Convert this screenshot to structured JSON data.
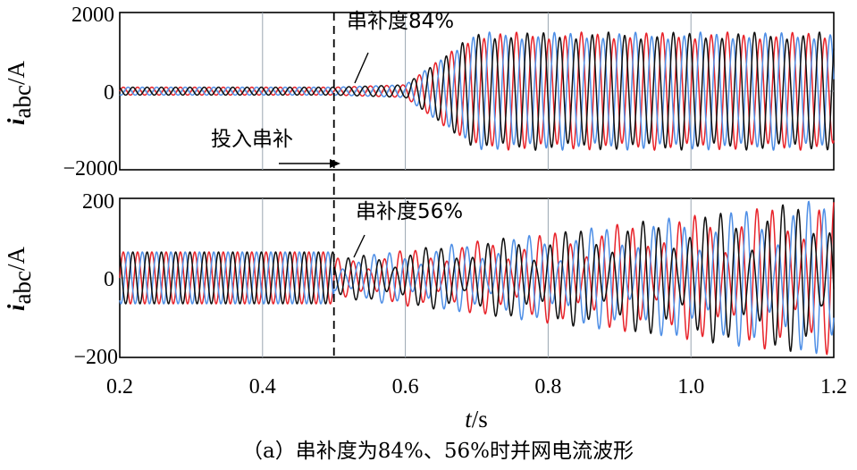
{
  "caption": "（a）串补度为84%、56%时并网电流波形",
  "x_axis": {
    "label_main": "t",
    "label_unit": "/s",
    "ticks": [
      "0.2",
      "0.4",
      "0.6",
      "0.8",
      "1.0",
      "1.2"
    ]
  },
  "colors": {
    "phase_a": "#e8232a",
    "phase_b": "#4f8fe6",
    "phase_c": "#111111",
    "grid": "#9aa6b0"
  },
  "chart_data": [
    {
      "type": "line",
      "ylabel_main": "i",
      "ylabel_sub": "abc",
      "ylabel_unit": "/A",
      "xlim": [
        0.2,
        1.2
      ],
      "ylim": [
        -2000,
        2000
      ],
      "y_ticks": [
        "2000",
        "0",
        "−2000"
      ],
      "grid": true,
      "series_note": "three-phase currents a, b, c",
      "event_time": 0.5,
      "steady_amplitude_before": 100,
      "growth_start": 0.6,
      "peak_amplitude_at_x": 0.7,
      "peak_amplitude": 1500,
      "envelope_oscillation_period": 0.1,
      "annotations": {
        "compensation": "串补度84%",
        "switch_in": "投入串补"
      }
    },
    {
      "type": "line",
      "ylabel_main": "i",
      "ylabel_sub": "abc",
      "ylabel_unit": "/A",
      "xlim": [
        0.2,
        1.2
      ],
      "ylim": [
        -200,
        200
      ],
      "y_ticks": [
        "200",
        "0",
        "−200"
      ],
      "grid": true,
      "series_note": "three-phase currents a, b, c",
      "event_time": 0.5,
      "amplitude_before": 65,
      "amplitude_end": 200,
      "beat_period": 0.1,
      "annotations": {
        "compensation": "串补度56%"
      }
    }
  ]
}
